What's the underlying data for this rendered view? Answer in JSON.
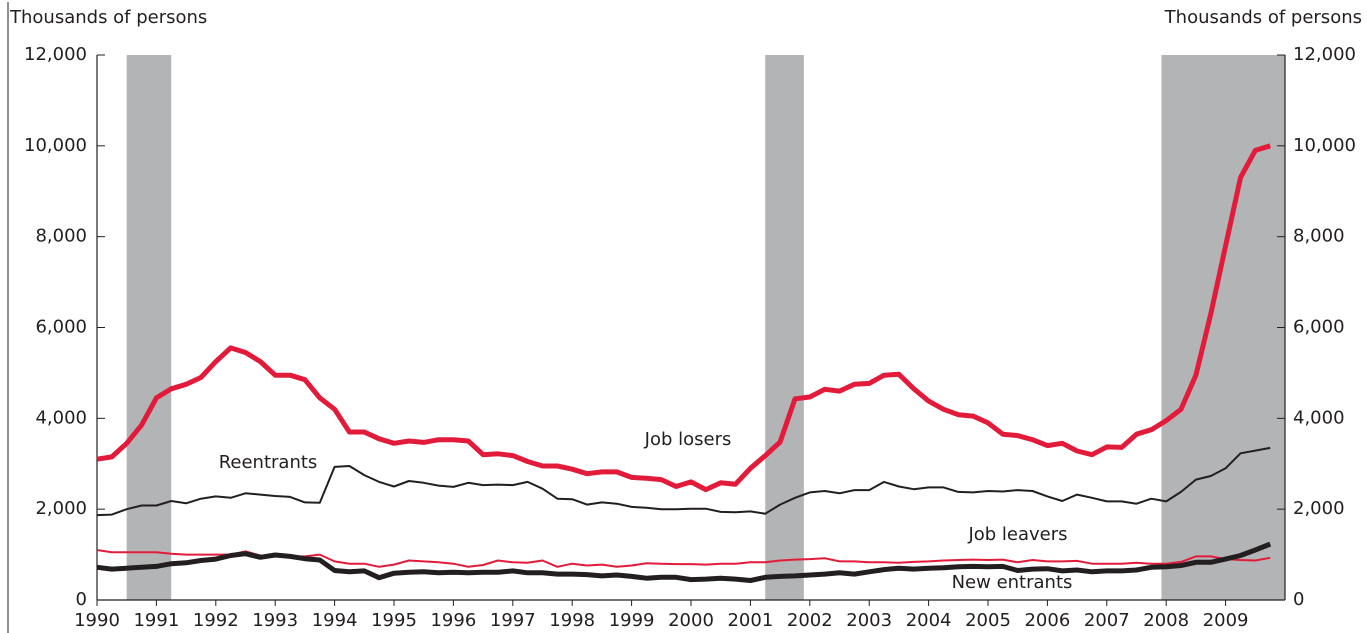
{
  "chart_data": {
    "type": "line",
    "y_label": "Thousands of persons",
    "y2_label": "Thousands of persons",
    "x": [
      1990,
      1990.25,
      1990.5,
      1990.75,
      1991,
      1991.25,
      1991.5,
      1991.75,
      1992,
      1992.25,
      1992.5,
      1992.75,
      1993,
      1993.25,
      1993.5,
      1993.75,
      1994,
      1994.25,
      1994.5,
      1994.75,
      1995,
      1995.25,
      1995.5,
      1995.75,
      1996,
      1996.25,
      1996.5,
      1996.75,
      1997,
      1997.25,
      1997.5,
      1997.75,
      1998,
      1998.25,
      1998.5,
      1998.75,
      1999,
      1999.25,
      1999.5,
      1999.75,
      2000,
      2000.25,
      2000.5,
      2000.75,
      2001,
      2001.25,
      2001.5,
      2001.75,
      2002,
      2002.25,
      2002.5,
      2002.75,
      2003,
      2003.25,
      2003.5,
      2003.75,
      2004,
      2004.25,
      2004.5,
      2004.75,
      2005,
      2005.25,
      2005.5,
      2005.75,
      2006,
      2006.25,
      2006.5,
      2006.75,
      2007,
      2007.25,
      2007.5,
      2007.75,
      2008,
      2008.25,
      2008.5,
      2008.75,
      2009,
      2009.25,
      2009.5,
      2009.75
    ],
    "xlim": [
      1990,
      2010
    ],
    "xticks": [
      1990,
      1991,
      1992,
      1993,
      1994,
      1995,
      1996,
      1997,
      1998,
      1999,
      2000,
      2001,
      2002,
      2003,
      2004,
      2005,
      2006,
      2007,
      2008,
      2009
    ],
    "ylim": [
      0,
      12000
    ],
    "yticks": [
      0,
      {
        "value": 2000,
        "label": "2,000"
      },
      {
        "value": 4000,
        "label": "4,000"
      },
      {
        "value": 6000,
        "label": "6,000"
      },
      {
        "value": 8000,
        "label": "8,000"
      },
      {
        "value": 10000,
        "label": "10,000"
      },
      {
        "value": 12000,
        "label": "12,000"
      }
    ],
    "y2lim": [
      0,
      12000
    ],
    "y2ticks": [
      0,
      {
        "value": 2000,
        "label": "2,000"
      },
      {
        "value": 4000,
        "label": "4,000"
      },
      {
        "value": 6000,
        "label": "6,000"
      },
      {
        "value": 8000,
        "label": "8,000"
      },
      {
        "value": 10000,
        "label": "10,000"
      },
      {
        "value": 12000,
        "label": "12,000"
      }
    ],
    "recessions": [
      [
        1990.5,
        1991.25
      ],
      [
        2001.25,
        2001.9
      ],
      [
        2007.92,
        2010
      ]
    ],
    "recession_color": "#b3b4b6",
    "series": [
      {
        "name": "Job losers",
        "color": "#e31b3b",
        "values": [
          3100,
          3150,
          3450,
          3850,
          4450,
          4650,
          4750,
          4900,
          5250,
          5550,
          5450,
          5250,
          4950,
          4950,
          4850,
          4450,
          4200,
          3700,
          3700,
          3550,
          3450,
          3500,
          3470,
          3530,
          3530,
          3500,
          3200,
          3220,
          3180,
          3050,
          2950,
          2950,
          2880,
          2780,
          2820,
          2820,
          2700,
          2680,
          2650,
          2500,
          2600,
          2430,
          2580,
          2550,
          2900,
          3180,
          3480,
          4430,
          4470,
          4640,
          4600,
          4750,
          4770,
          4950,
          4970,
          4650,
          4380,
          4200,
          4080,
          4050,
          3900,
          3650,
          3620,
          3530,
          3400,
          3450,
          3280,
          3200,
          3370,
          3360,
          3650,
          3750,
          3950,
          4200,
          4950,
          6300,
          7800,
          9300,
          9900,
          10000
        ]
      },
      {
        "name": "Reentrants",
        "color": "#231f20",
        "values": [
          1870,
          1880,
          2000,
          2080,
          2080,
          2180,
          2130,
          2230,
          2280,
          2250,
          2350,
          2320,
          2290,
          2270,
          2150,
          2140,
          2930,
          2950,
          2750,
          2600,
          2500,
          2620,
          2580,
          2520,
          2490,
          2580,
          2530,
          2540,
          2530,
          2600,
          2450,
          2230,
          2220,
          2100,
          2150,
          2120,
          2050,
          2030,
          2000,
          2000,
          2010,
          2010,
          1940,
          1930,
          1950,
          1900,
          2100,
          2250,
          2370,
          2400,
          2350,
          2420,
          2420,
          2600,
          2500,
          2440,
          2480,
          2480,
          2380,
          2370,
          2400,
          2390,
          2420,
          2400,
          2280,
          2180,
          2320,
          2250,
          2170,
          2170,
          2120,
          2230,
          2170,
          2380,
          2650,
          2730,
          2900,
          3230,
          3290,
          3350
        ]
      },
      {
        "name": "Job leavers",
        "color": "#e31b3b",
        "values": [
          1100,
          1050,
          1050,
          1050,
          1050,
          1020,
          1000,
          1000,
          1000,
          1000,
          1070,
          980,
          980,
          960,
          960,
          1000,
          850,
          800,
          800,
          730,
          780,
          870,
          850,
          830,
          800,
          730,
          770,
          870,
          830,
          820,
          870,
          730,
          800,
          760,
          780,
          730,
          760,
          810,
          800,
          790,
          790,
          780,
          800,
          800,
          830,
          830,
          870,
          890,
          900,
          920,
          850,
          850,
          830,
          830,
          820,
          840,
          850,
          870,
          880,
          890,
          880,
          890,
          830,
          880,
          850,
          850,
          860,
          800,
          800,
          800,
          820,
          800,
          800,
          840,
          960,
          960,
          900,
          880,
          870,
          930
        ]
      },
      {
        "name": "New entrants",
        "color": "#231f20",
        "values": [
          720,
          680,
          700,
          720,
          740,
          800,
          820,
          870,
          900,
          980,
          1020,
          940,
          990,
          960,
          910,
          880,
          650,
          620,
          640,
          490,
          590,
          610,
          620,
          600,
          610,
          600,
          610,
          610,
          640,
          600,
          600,
          570,
          570,
          560,
          530,
          550,
          520,
          480,
          500,
          500,
          450,
          460,
          480,
          460,
          430,
          500,
          520,
          530,
          550,
          570,
          600,
          570,
          620,
          670,
          700,
          680,
          700,
          710,
          730,
          740,
          730,
          740,
          650,
          680,
          690,
          640,
          660,
          620,
          640,
          640,
          660,
          720,
          730,
          760,
          830,
          830,
          900,
          980,
          1100,
          1230
        ]
      }
    ]
  }
}
